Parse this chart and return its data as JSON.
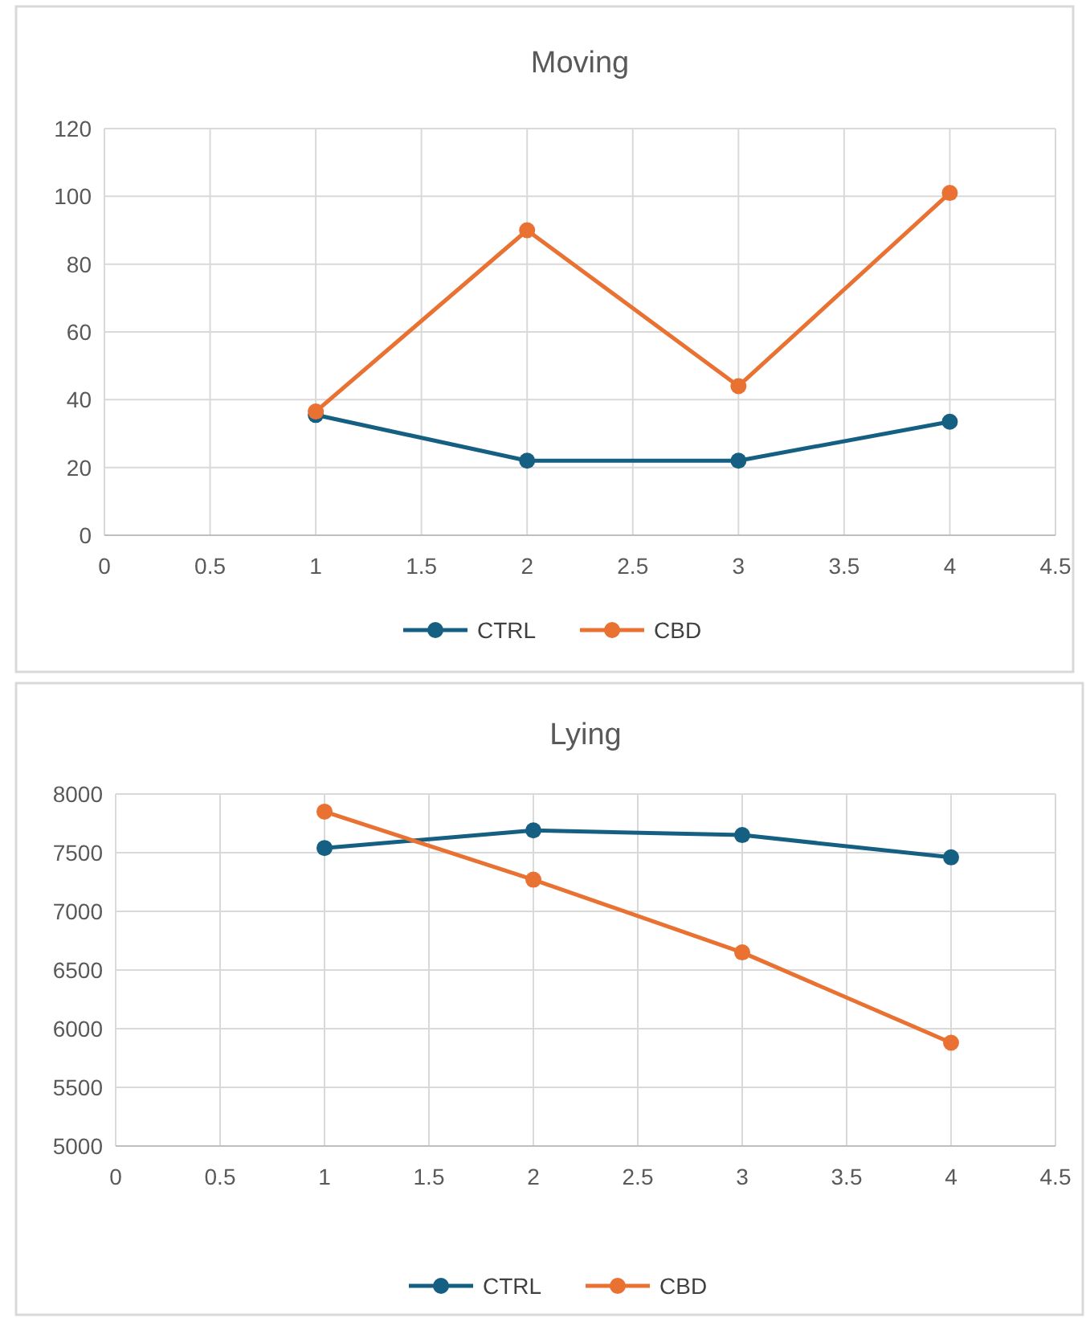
{
  "chart_data": [
    {
      "type": "line",
      "title": "Moving",
      "x": [
        1,
        2,
        3,
        4
      ],
      "xlim": [
        0,
        4.5
      ],
      "xticks": [
        0,
        0.5,
        1,
        1.5,
        2,
        2.5,
        3,
        3.5,
        4,
        4.5
      ],
      "ylim": [
        0,
        120
      ],
      "yticks": [
        0,
        20,
        40,
        60,
        80,
        100,
        120
      ],
      "grid": true,
      "legend": "bottom",
      "marker": "circle",
      "line_style": "solid",
      "series": [
        {
          "name": "CTRL",
          "color": "#156082",
          "values": [
            35.5,
            22,
            22,
            33.5
          ]
        },
        {
          "name": "CBD",
          "color": "#e97132",
          "values": [
            36.5,
            90,
            44,
            101
          ]
        }
      ]
    },
    {
      "type": "line",
      "title": "Lying",
      "x": [
        1,
        2,
        3,
        4
      ],
      "xlim": [
        0,
        4.5
      ],
      "xticks": [
        0,
        0.5,
        1,
        1.5,
        2,
        2.5,
        3,
        3.5,
        4,
        4.5
      ],
      "ylim": [
        5000,
        8000
      ],
      "yticks": [
        5000,
        5500,
        6000,
        6500,
        7000,
        7500,
        8000
      ],
      "grid": true,
      "legend": "bottom",
      "marker": "circle",
      "line_style": "solid",
      "series": [
        {
          "name": "CTRL",
          "color": "#156082",
          "values": [
            7540,
            7690,
            7650,
            7460
          ]
        },
        {
          "name": "CBD",
          "color": "#e97132",
          "values": [
            7850,
            7270,
            6650,
            5880
          ]
        }
      ]
    }
  ]
}
